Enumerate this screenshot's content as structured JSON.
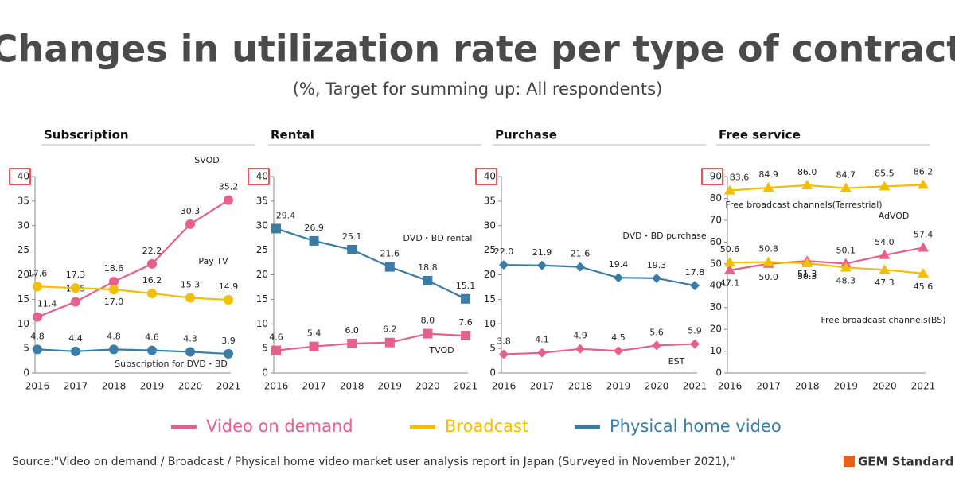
{
  "title": "Changes in utilization rate per type of contract",
  "subtitle": "(%, Target for summing up: All respondents)",
  "legend": [
    {
      "label": "Video on demand",
      "color": "#e5608a"
    },
    {
      "label": "Broadcast",
      "color": "#f2bf00"
    },
    {
      "label": "Physical home video",
      "color": "#3a7ca5"
    }
  ],
  "source": "Source:\"Video on demand / Broadcast / Physical home video market user analysis report in Japan (Surveyed in November 2021),\"",
  "logo": "GEM Standard",
  "chart_data": [
    {
      "type": "line",
      "title": "Subscription",
      "categories": [
        "2016",
        "2017",
        "2018",
        "2019",
        "2020",
        "2021"
      ],
      "ylim": [
        0,
        40
      ],
      "yticks": [
        0,
        5,
        10,
        15,
        20,
        25,
        30,
        35,
        40
      ],
      "series": [
        {
          "name": "SVOD",
          "color": "#e5608a",
          "marker": "circle",
          "values": [
            11.4,
            14.5,
            18.6,
            22.2,
            30.3,
            35.2
          ],
          "value_labels": [
            "11.4",
            "14.5",
            "18.6",
            "22.2",
            "30.3",
            "35.2"
          ]
        },
        {
          "name": "Pay TV",
          "color": "#f2bf00",
          "marker": "circle",
          "values": [
            17.6,
            17.3,
            17.0,
            16.2,
            15.3,
            14.9
          ],
          "value_labels": [
            "17.6",
            "17.3",
            "17.0",
            "16.2",
            "15.3",
            "14.9"
          ]
        },
        {
          "name": "Subscription for DVD・BD",
          "color": "#3a7ca5",
          "marker": "circle",
          "values": [
            4.8,
            4.4,
            4.8,
            4.6,
            4.3,
            3.9
          ],
          "value_labels": [
            "4.8",
            "4.4",
            "4.8",
            "4.6",
            "4.3",
            "3.9"
          ]
        }
      ]
    },
    {
      "type": "line",
      "title": "Rental",
      "categories": [
        "2016",
        "2017",
        "2018",
        "2019",
        "2020",
        "2021"
      ],
      "ylim": [
        0,
        40
      ],
      "yticks": [
        0,
        5,
        10,
        15,
        20,
        25,
        30,
        35,
        40
      ],
      "series": [
        {
          "name": "DVD・BD rental",
          "color": "#3a7ca5",
          "marker": "square",
          "values": [
            29.4,
            26.9,
            25.1,
            21.6,
            18.8,
            15.1
          ],
          "value_labels": [
            "29.4",
            "26.9",
            "25.1",
            "21.6",
            "18.8",
            "15.1"
          ]
        },
        {
          "name": "TVOD",
          "color": "#e5608a",
          "marker": "square",
          "values": [
            4.6,
            5.4,
            6.0,
            6.2,
            8.0,
            7.6
          ],
          "value_labels": [
            "4.6",
            "5.4",
            "6.0",
            "6.2",
            "8.0",
            "7.6"
          ]
        }
      ]
    },
    {
      "type": "line",
      "title": "Purchase",
      "categories": [
        "2016",
        "2017",
        "2018",
        "2019",
        "2020",
        "2021"
      ],
      "ylim": [
        0,
        40
      ],
      "yticks": [
        0,
        5,
        10,
        15,
        20,
        25,
        30,
        35,
        40
      ],
      "series": [
        {
          "name": "DVD・BD purchase",
          "color": "#3a7ca5",
          "marker": "diamond",
          "values": [
            22.0,
            21.9,
            21.6,
            19.4,
            19.3,
            17.8
          ],
          "value_labels": [
            "22.0",
            "21.9",
            "21.6",
            "19.4",
            "19.3",
            "17.8"
          ]
        },
        {
          "name": "EST",
          "color": "#e5608a",
          "marker": "diamond",
          "values": [
            3.8,
            4.1,
            4.9,
            4.5,
            5.6,
            5.9
          ],
          "value_labels": [
            "3.8",
            "4.1",
            "4.9",
            "4.5",
            "5.6",
            "5.9"
          ]
        }
      ]
    },
    {
      "type": "line",
      "title": "Free service",
      "categories": [
        "2016",
        "2017",
        "2018",
        "2019",
        "2020",
        "2021"
      ],
      "ylim": [
        0,
        90
      ],
      "yticks": [
        0,
        10,
        20,
        30,
        40,
        50,
        60,
        70,
        80,
        90
      ],
      "series": [
        {
          "name": "Free broadcast channels(Terrestrial)",
          "color": "#f2bf00",
          "marker": "triangle",
          "values": [
            83.6,
            84.9,
            86.0,
            84.7,
            85.5,
            86.2
          ],
          "value_labels": [
            "83.6",
            "84.9",
            "86.0",
            "84.7",
            "85.5",
            "86.2"
          ]
        },
        {
          "name": "AdVOD",
          "color": "#e5608a",
          "marker": "triangle",
          "values": [
            47.1,
            50.0,
            51.3,
            50.1,
            54.0,
            57.4
          ],
          "value_labels": [
            "47.1",
            "50.0",
            "51.3",
            "50.1",
            "54.0",
            "57.4"
          ]
        },
        {
          "name": "Free broadcast channels(BS)",
          "color": "#f2bf00",
          "marker": "triangle",
          "values": [
            50.6,
            50.8,
            50.3,
            48.3,
            47.3,
            45.6
          ],
          "value_labels": [
            "50.6",
            "50.8",
            "50.3",
            "48.3",
            "47.3",
            "45.6"
          ]
        }
      ]
    }
  ]
}
